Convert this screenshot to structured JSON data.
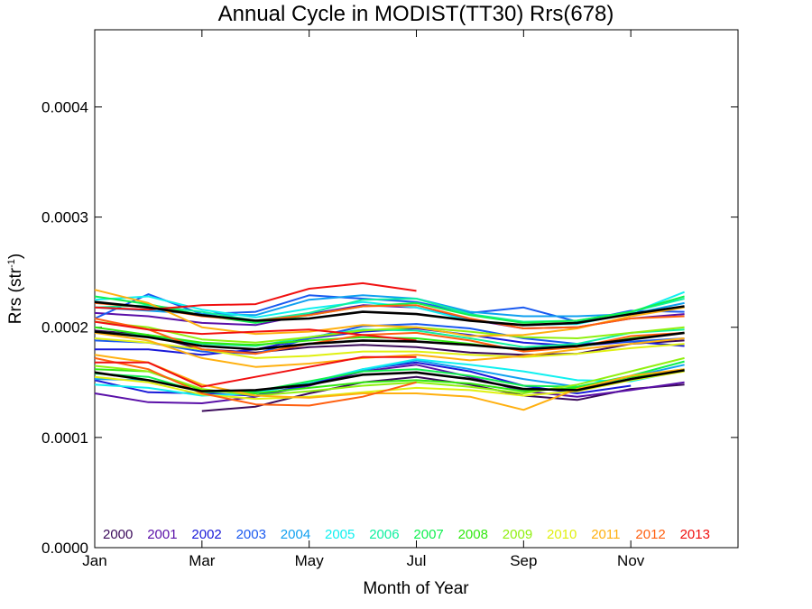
{
  "chart_data": {
    "type": "line",
    "title": "Annual Cycle in MODIST(TT30) Rrs(678)",
    "xlabel": "Month of Year",
    "ylabel_main": "Rrs (str",
    "ylabel_sup": "-1",
    "ylabel_close": ")",
    "xlim": [
      0,
      12
    ],
    "ylim": [
      0.0,
      0.00047
    ],
    "xticks": [
      {
        "label": "Jan",
        "value": 0
      },
      {
        "label": "Mar",
        "value": 2
      },
      {
        "label": "May",
        "value": 4
      },
      {
        "label": "Jul",
        "value": 6
      },
      {
        "label": "Sep",
        "value": 8
      },
      {
        "label": "Nov",
        "value": 10
      }
    ],
    "yticks": [
      {
        "label": "0.0000",
        "value": 0.0
      },
      {
        "label": "0.0001",
        "value": 0.0001
      },
      {
        "label": "0.0002",
        "value": 0.0002
      },
      {
        "label": "0.0003",
        "value": 0.0003
      },
      {
        "label": "0.0004",
        "value": 0.0004
      }
    ],
    "x": [
      0,
      1,
      2,
      3,
      4,
      5,
      6,
      7,
      8,
      9,
      10,
      11
    ],
    "legend": [
      {
        "name": "2000",
        "color": "#3a0a5a"
      },
      {
        "name": "2001",
        "color": "#5a10a8"
      },
      {
        "name": "2002",
        "color": "#1a1ad8"
      },
      {
        "name": "2003",
        "color": "#1a5af0"
      },
      {
        "name": "2004",
        "color": "#10a0f0"
      },
      {
        "name": "2005",
        "color": "#10f0f0"
      },
      {
        "name": "2006",
        "color": "#10f0a0"
      },
      {
        "name": "2007",
        "color": "#10f050"
      },
      {
        "name": "2008",
        "color": "#30e810"
      },
      {
        "name": "2009",
        "color": "#90f010"
      },
      {
        "name": "2010",
        "color": "#e0f010"
      },
      {
        "name": "2011",
        "color": "#ffb010"
      },
      {
        "name": "2012",
        "color": "#ff6010"
      },
      {
        "name": "2013",
        "color": "#f01010"
      }
    ],
    "series": [
      {
        "color": "#3a0a5a",
        "values": [
          0.000197,
          0.000193,
          0.00018,
          0.000177,
          0.000182,
          0.000184,
          0.000182,
          0.000177,
          0.000175,
          0.000176,
          0.000185,
          0.000188
        ]
      },
      {
        "color": "#3a0a5a",
        "values": [
          null,
          null,
          0.000124,
          0.000128,
          0.00014,
          0.00015,
          0.000155,
          0.000148,
          0.000138,
          0.000134,
          0.000144,
          0.000148
        ]
      },
      {
        "color": "#5a10a8",
        "values": [
          0.00014,
          0.000132,
          0.000131,
          0.000137,
          0.000147,
          0.00016,
          0.000166,
          0.000155,
          0.000142,
          0.000137,
          0.000143,
          0.00015
        ]
      },
      {
        "color": "#5a10a8",
        "values": [
          0.000213,
          0.00021,
          0.000204,
          0.000202,
          0.000212,
          0.00022,
          0.000218,
          0.000207,
          0.000199,
          0.0002,
          0.000208,
          0.000212
        ]
      },
      {
        "color": "#1a1ad8",
        "values": [
          0.00018,
          0.00018,
          0.000175,
          0.00018,
          0.00019,
          0.000196,
          0.000199,
          0.000193,
          0.000186,
          0.000183,
          0.000187,
          0.000183
        ]
      },
      {
        "color": "#1a1ad8",
        "values": [
          0.000152,
          0.000141,
          0.00014,
          0.000138,
          0.000148,
          0.000162,
          0.000168,
          0.00016,
          0.000147,
          0.00014,
          0.000147,
          null
        ]
      },
      {
        "color": "#1a5af0",
        "values": [
          0.000208,
          0.00023,
          0.000212,
          0.000214,
          0.000229,
          0.000226,
          0.000223,
          0.000213,
          0.000218,
          0.000205,
          0.000215,
          0.000214
        ]
      },
      {
        "color": "#1a5af0",
        "values": [
          0.000188,
          0.000186,
          0.000178,
          0.000176,
          0.00019,
          0.000201,
          0.000203,
          0.000199,
          0.00019,
          0.000185,
          0.000187,
          0.00019
        ]
      },
      {
        "color": "#10a0f0",
        "values": [
          0.000218,
          0.000215,
          0.000212,
          0.000211,
          0.000225,
          0.000229,
          0.000226,
          0.000214,
          0.00021,
          0.00021,
          0.000212,
          0.000222
        ]
      },
      {
        "color": "#10a0f0",
        "values": [
          0.000153,
          0.000152,
          0.000142,
          0.000141,
          0.00015,
          0.000161,
          0.00017,
          0.000162,
          0.000153,
          0.000146,
          0.000155,
          0.000166
        ]
      },
      {
        "color": "#10f0f0",
        "values": [
          0.000225,
          0.000228,
          0.000216,
          0.000209,
          0.000217,
          0.000223,
          0.000218,
          0.000206,
          0.000202,
          0.000203,
          0.000213,
          0.000232
        ]
      },
      {
        "color": "#10f0f0",
        "values": [
          0.000148,
          0.000145,
          0.000138,
          0.00014,
          0.00015,
          0.000162,
          0.000171,
          0.000166,
          0.00016,
          0.000152,
          0.000151,
          0.000161
        ]
      },
      {
        "color": "#10f0a0",
        "values": [
          0.000218,
          0.00022,
          0.000214,
          0.000206,
          0.000213,
          0.000225,
          0.000226,
          0.000212,
          0.000205,
          0.000206,
          0.000214,
          0.000226
        ]
      },
      {
        "color": "#10f0a0",
        "values": [
          0.000196,
          0.000192,
          0.000185,
          0.000183,
          0.000191,
          0.000198,
          0.000197,
          0.00019,
          0.000182,
          0.000185,
          0.000195,
          0.000198
        ]
      },
      {
        "color": "#10f050",
        "values": [
          0.000228,
          0.000221,
          0.000211,
          0.000204,
          0.000211,
          0.000219,
          0.000222,
          0.000211,
          0.000204,
          0.000206,
          0.000214,
          0.000228
        ]
      },
      {
        "color": "#10f050",
        "values": [
          0.000158,
          0.000155,
          0.000141,
          0.000142,
          0.000151,
          0.00016,
          0.000162,
          0.000156,
          0.000147,
          0.000146,
          0.000156,
          0.000169
        ]
      },
      {
        "color": "#30e810",
        "values": [
          0.0002,
          0.000193,
          0.000186,
          0.000184,
          0.000188,
          0.000191,
          0.00019,
          0.000185,
          0.000179,
          0.000182,
          0.00019,
          0.000195
        ]
      },
      {
        "color": "#30e810",
        "values": [
          0.000162,
          0.00016,
          0.000143,
          0.00014,
          0.000145,
          0.00015,
          0.000152,
          0.000149,
          0.000142,
          0.000145,
          0.000155,
          0.000162
        ]
      },
      {
        "color": "#90f010",
        "values": [
          0.000165,
          0.00016,
          0.000144,
          0.000138,
          0.000142,
          0.000147,
          0.00015,
          0.000146,
          0.00014,
          0.000148,
          0.00016,
          0.000172
        ]
      },
      {
        "color": "#90f010",
        "values": [
          0.000205,
          0.0002,
          0.000189,
          0.000186,
          0.000191,
          0.000197,
          0.0002,
          0.000196,
          0.000191,
          0.00019,
          0.000195,
          0.0002
        ]
      },
      {
        "color": "#e0f010",
        "values": [
          0.00019,
          0.000186,
          0.00018,
          0.000172,
          0.000174,
          0.000178,
          0.000178,
          0.000175,
          0.000173,
          0.000176,
          0.000181,
          0.000185
        ]
      },
      {
        "color": "#e0f010",
        "values": [
          0.000155,
          0.00015,
          0.000139,
          0.000135,
          0.000137,
          0.000141,
          0.000145,
          0.000143,
          0.000138,
          0.000142,
          0.000152,
          0.00016
        ]
      },
      {
        "color": "#ffb010",
        "values": [
          0.000234,
          0.000222,
          0.0002,
          0.000194,
          0.000196,
          0.000202,
          0.0002,
          0.000192,
          0.000193,
          0.000199,
          0.00021,
          0.000218
        ]
      },
      {
        "color": "#ffb010",
        "values": [
          0.000175,
          0.000168,
          0.000148,
          0.000138,
          0.000136,
          0.00014,
          0.00014,
          0.000137,
          0.000125,
          0.000144,
          0.000156,
          0.000162
        ]
      },
      {
        "color": "#ffb010",
        "values": [
          0.000195,
          0.000188,
          0.000172,
          0.000164,
          0.000167,
          0.000172,
          0.000175,
          0.00017,
          0.000174,
          0.00018,
          0.000185,
          0.00019
        ]
      },
      {
        "color": "#ff6010",
        "values": [
          0.000208,
          0.000198,
          0.00018,
          0.000176,
          0.000185,
          0.000193,
          0.000195,
          0.000188,
          0.000178,
          0.000182,
          0.000192,
          0.000195
        ]
      },
      {
        "color": "#ff6010",
        "values": [
          0.000172,
          0.000162,
          0.00014,
          0.00013,
          0.000129,
          0.000137,
          0.00015,
          null,
          null,
          null,
          null,
          null
        ]
      },
      {
        "color": "#ff6010",
        "values": [
          0.000222,
          0.000218,
          0.00021,
          0.000206,
          0.000211,
          0.000219,
          0.00022,
          0.000208,
          0.000199,
          0.0002,
          0.000208,
          0.00021
        ]
      },
      {
        "color": "#f01010",
        "values": [
          0.000218,
          0.000216,
          0.00022,
          0.000221,
          0.000235,
          0.00024,
          0.000233,
          null,
          null,
          null,
          null,
          null
        ]
      },
      {
        "color": "#f01010",
        "values": [
          0.000168,
          0.000168,
          0.000146,
          0.000155,
          0.000164,
          0.000173,
          0.000173,
          null,
          null,
          null,
          null,
          null
        ]
      },
      {
        "color": "#f01010",
        "values": [
          0.000205,
          0.000198,
          0.000194,
          0.000196,
          0.000198,
          0.000193,
          0.000188,
          null,
          null,
          null,
          null,
          null
        ]
      },
      {
        "color": "#000000",
        "width": 2.6,
        "values": [
          0.000223,
          0.000218,
          0.000211,
          0.000206,
          0.000208,
          0.000214,
          0.000212,
          0.000206,
          0.000202,
          0.000204,
          0.000212,
          0.000219
        ]
      },
      {
        "color": "#000000",
        "width": 2.6,
        "values": [
          0.000196,
          0.000191,
          0.000183,
          0.00018,
          0.000185,
          0.000188,
          0.000187,
          0.000184,
          0.00018,
          0.000183,
          0.000189,
          0.000195
        ]
      },
      {
        "color": "#000000",
        "width": 2.6,
        "values": [
          0.000159,
          0.000152,
          0.000142,
          0.000143,
          0.000148,
          0.000157,
          0.000159,
          0.000153,
          0.000144,
          0.000143,
          0.000153,
          0.000161
        ]
      }
    ]
  }
}
